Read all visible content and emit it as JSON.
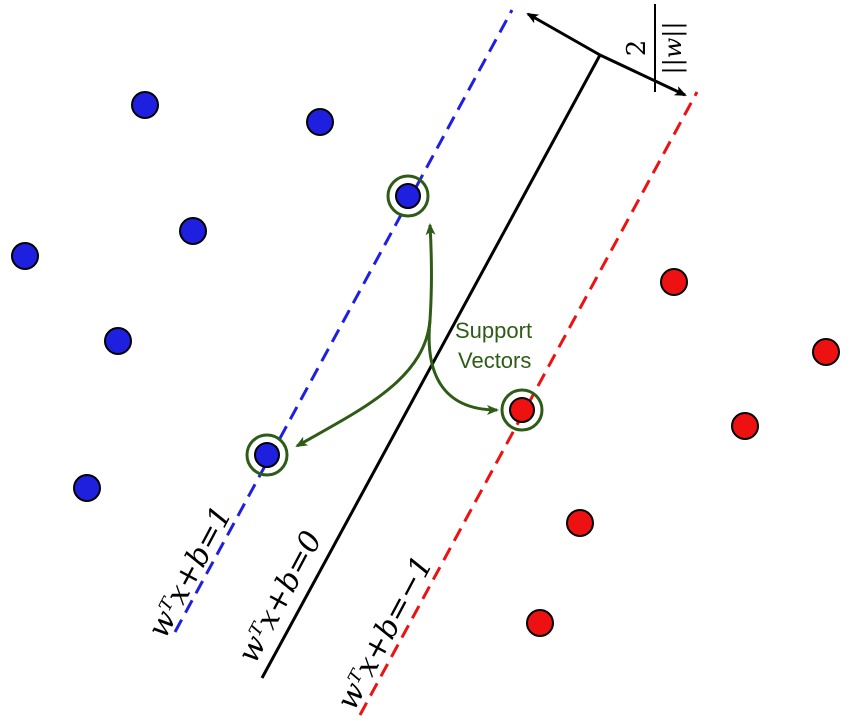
{
  "colors": {
    "positive": "#1f1fe0",
    "negative": "#ee1111",
    "hyperplane": "#000000",
    "annotation": "#2e5c16"
  },
  "diagram": {
    "margin_label": {
      "numerator": "2",
      "denominator": "||w||"
    },
    "annotation": {
      "line1": "Support",
      "line2": "Vectors"
    },
    "line_labels": {
      "positive": "wᵀx+b=1",
      "middle": "wᵀx+b=0",
      "negative": "wᵀx+b=−1"
    }
  }
}
